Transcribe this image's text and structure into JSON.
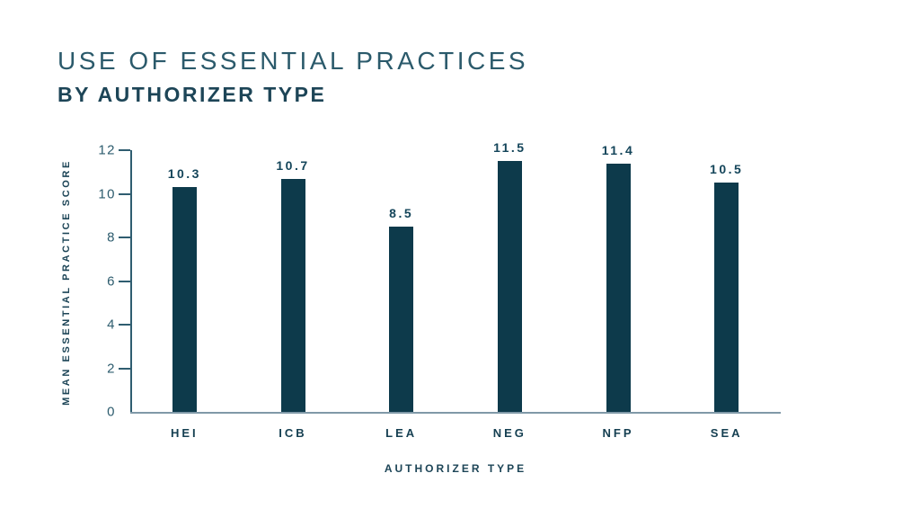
{
  "header": {
    "title": "USE OF ESSENTIAL PRACTICES",
    "subtitle": "BY AUTHORIZER TYPE"
  },
  "colors": {
    "bar": "#0d3a4b",
    "title_text": "#2b5a6b",
    "subtitle_text": "#1d4557",
    "axis_line": "#2f5d70",
    "baseline": "#8099a8",
    "tick_label": "#2d5c6e",
    "value_label": "#14455a",
    "category_label": "#153f51"
  },
  "chart_data": {
    "type": "bar",
    "title": "USE OF ESSENTIAL PRACTICES",
    "subtitle": "BY AUTHORIZER TYPE",
    "categories": [
      "HEI",
      "ICB",
      "LEA",
      "NEG",
      "NFP",
      "SEA"
    ],
    "values": [
      10.3,
      10.7,
      8.5,
      11.5,
      11.4,
      10.5
    ],
    "value_labels": [
      "10.3",
      "10.7",
      "8.5",
      "11.5",
      "11.4",
      "10.5"
    ],
    "xlabel": "AUTHORIZER TYPE",
    "ylabel": "MEAN ESSENTIAL PRACTICE SCORE",
    "ylim": [
      0,
      12
    ],
    "yticks": [
      0,
      2,
      4,
      6,
      8,
      10,
      12
    ],
    "grid": false,
    "legend": false,
    "bar_color": "#0d3a4b"
  }
}
